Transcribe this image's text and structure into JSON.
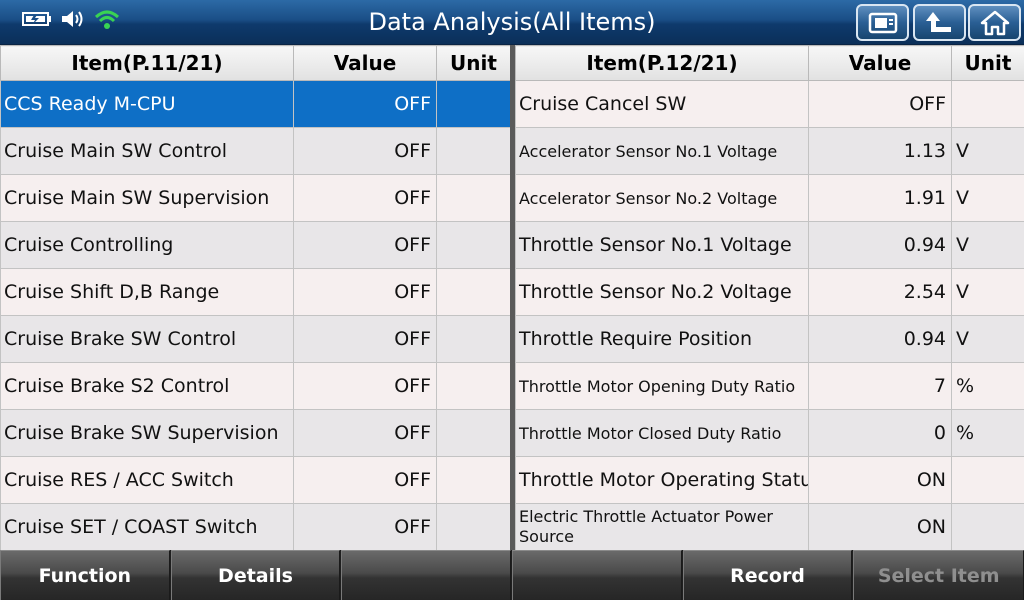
{
  "header": {
    "title": "Data Analysis(All Items)",
    "status_icons": [
      "battery-icon",
      "speaker-icon",
      "wifi-icon"
    ],
    "nav_buttons": [
      "screenshot-icon",
      "back-icon",
      "home-icon"
    ]
  },
  "left_table": {
    "headers": {
      "item": "Item(P.11/21)",
      "value": "Value",
      "unit": "Unit"
    },
    "rows": [
      {
        "item": "CCS Ready M-CPU",
        "value": "OFF",
        "unit": ""
      },
      {
        "item": "Cruise Main SW Control",
        "value": "OFF",
        "unit": ""
      },
      {
        "item": "Cruise Main SW Supervision",
        "value": "OFF",
        "unit": ""
      },
      {
        "item": "Cruise Controlling",
        "value": "OFF",
        "unit": ""
      },
      {
        "item": "Cruise Shift D,B Range",
        "value": "OFF",
        "unit": ""
      },
      {
        "item": "Cruise Brake SW Control",
        "value": "OFF",
        "unit": ""
      },
      {
        "item": "Cruise Brake S2 Control",
        "value": "OFF",
        "unit": ""
      },
      {
        "item": "Cruise Brake SW Supervision",
        "value": "OFF",
        "unit": ""
      },
      {
        "item": "Cruise RES / ACC Switch",
        "value": "OFF",
        "unit": ""
      },
      {
        "item": "Cruise SET / COAST Switch",
        "value": "OFF",
        "unit": ""
      }
    ]
  },
  "right_table": {
    "headers": {
      "item": "Item(P.12/21)",
      "value": "Value",
      "unit": "Unit"
    },
    "rows": [
      {
        "item": "Cruise Cancel SW",
        "value": "OFF",
        "unit": ""
      },
      {
        "item": "Accelerator Sensor No.1 Voltage",
        "value": "1.13",
        "unit": "V"
      },
      {
        "item": "Accelerator Sensor No.2 Voltage",
        "value": "1.91",
        "unit": "V"
      },
      {
        "item": "Throttle Sensor No.1 Voltage",
        "value": "0.94",
        "unit": "V"
      },
      {
        "item": "Throttle Sensor No.2 Voltage",
        "value": "2.54",
        "unit": "V"
      },
      {
        "item": "Throttle Require Position",
        "value": "0.94",
        "unit": "V"
      },
      {
        "item": "Throttle Motor Opening Duty Ratio",
        "value": "7",
        "unit": "%"
      },
      {
        "item": "Throttle Motor Closed Duty Ratio",
        "value": "0",
        "unit": "%"
      },
      {
        "item": "Throttle Motor Operating Status",
        "value": "ON",
        "unit": ""
      },
      {
        "item": "Electric Throttle Actuator Power Source",
        "value": "ON",
        "unit": ""
      }
    ]
  },
  "bottom_bar": {
    "function_label": "Function",
    "details_label": "Details",
    "blank1_label": "",
    "blank2_label": "",
    "record_label": "Record",
    "select_item_label": "Select Item"
  },
  "colors": {
    "title_bar": "#1a4e86",
    "selected_row": "#0e6fc6",
    "wifi": "#39d353",
    "disabled_text": "#8f8f8f"
  }
}
